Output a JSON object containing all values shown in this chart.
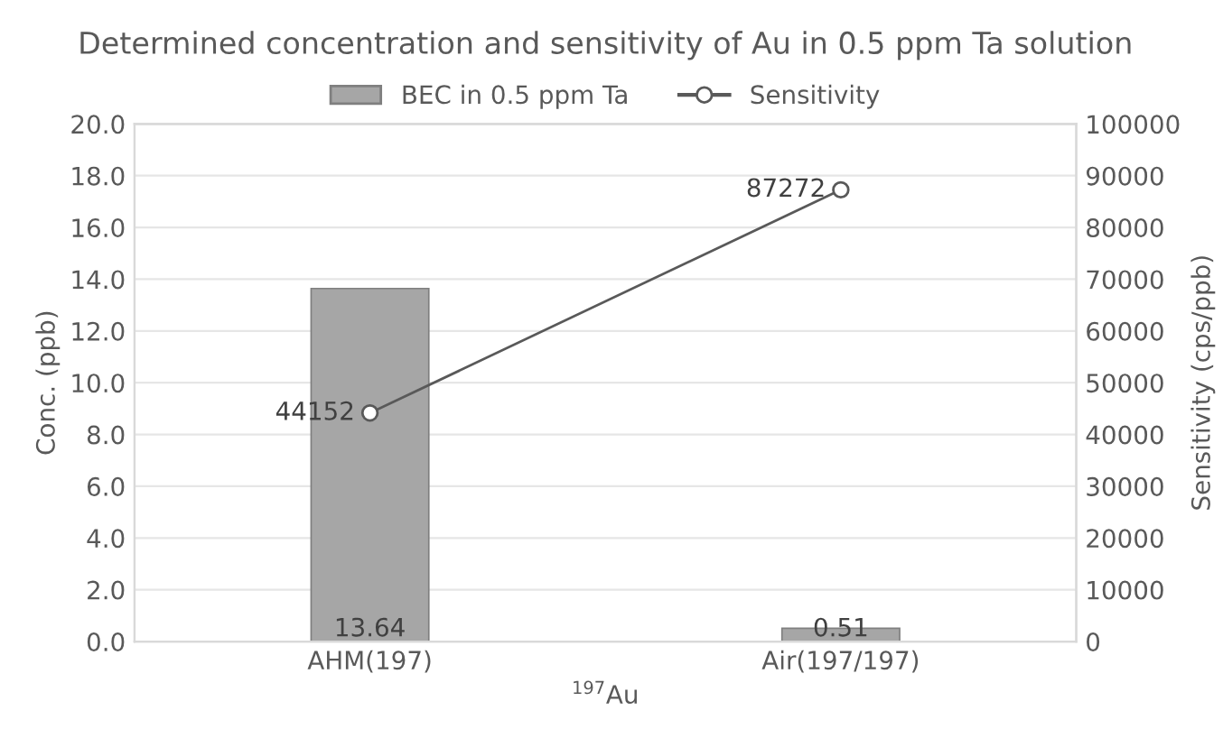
{
  "chart_data": {
    "type": "bar",
    "title": "Determined concentration and sensitivity of Au in 0.5 ppm Ta solution",
    "xlabel": "$^{197}$Au",
    "ylabel": "Conc. (ppb)",
    "y2label": "Sensitivity (cps/ppb)",
    "categories": [
      "AHM(197)",
      "Air(197/197)"
    ],
    "series": [
      {
        "name": "BEC in 0.5 ppm Ta",
        "color": "#a6a6a6",
        "values": [
          13.64,
          0.51
        ]
      },
      {
        "name": "Sensitivity",
        "type": "line",
        "axis": "y2",
        "color": "#595959",
        "marker": "circle",
        "values": [
          44152,
          87272
        ]
      }
    ],
    "ylim": [
      0,
      20
    ],
    "yticks": [
      {
        "value": 0,
        "label": "0.0"
      },
      {
        "value": 2,
        "label": "2.0"
      },
      {
        "value": 4,
        "label": "4.0"
      },
      {
        "value": 6,
        "label": "6.0"
      },
      {
        "value": 8,
        "label": "8.0"
      },
      {
        "value": 10,
        "label": "10.0"
      },
      {
        "value": 12,
        "label": "12.0"
      },
      {
        "value": 14,
        "label": "14.0"
      },
      {
        "value": 16,
        "label": "16.0"
      },
      {
        "value": 18,
        "label": "18.0"
      },
      {
        "value": 20,
        "label": "20.0"
      }
    ],
    "y2lim": [
      0,
      100000
    ],
    "y2ticks": [
      0,
      10000,
      20000,
      30000,
      40000,
      50000,
      60000,
      70000,
      80000,
      90000,
      100000
    ],
    "data_labels": true,
    "grid": "y",
    "legend": "top"
  }
}
